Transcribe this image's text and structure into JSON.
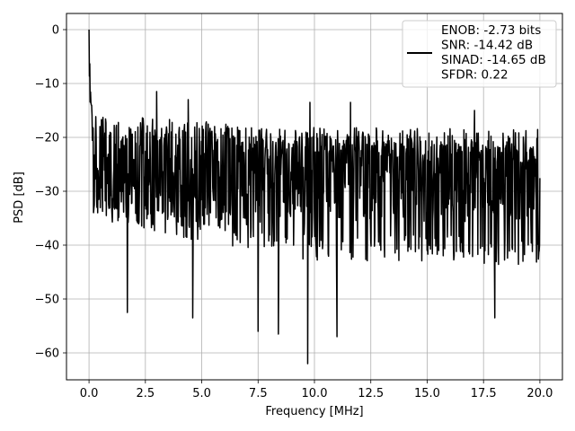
{
  "chart_data": {
    "type": "line",
    "xlabel": "Frequency [MHz]",
    "ylabel": "PSD [dB]",
    "xlim": [
      -1,
      21
    ],
    "ylim": [
      -65,
      3
    ],
    "xticks": [
      "0.0",
      "2.5",
      "5.0",
      "7.5",
      "10.0",
      "12.5",
      "15.0",
      "17.5",
      "20.0"
    ],
    "yticks": [
      "0",
      "−10",
      "−20",
      "−30",
      "−40",
      "−50",
      "−60"
    ],
    "grid": true,
    "legend_position": "top-right",
    "legend": [
      "ENOB: -2.73 bits",
      "SNR: -14.42 dB",
      "SINAD: -14.65 dB",
      "SFDR: 0.22"
    ],
    "series_color": "#000000",
    "series": [
      {
        "x_start": 0.0,
        "x_end": 20.0,
        "n_points": 1200,
        "peak": {
          "x": 0.0,
          "y": 0.0
        },
        "initial_decay": [
          [
            0.0,
            0.0
          ],
          [
            0.02,
            -3
          ],
          [
            0.05,
            -8
          ],
          [
            0.1,
            -12
          ],
          [
            0.2,
            -16
          ]
        ],
        "noise_floor_mean": -27,
        "upper_envelope": [
          [
            0.3,
            -15
          ],
          [
            2.0,
            -16
          ],
          [
            5.0,
            -17
          ],
          [
            10.0,
            -19
          ],
          [
            15.0,
            -20
          ],
          [
            20.0,
            -21
          ]
        ],
        "lower_envelope": [
          [
            0.3,
            -35
          ],
          [
            5.0,
            -40
          ],
          [
            10.0,
            -43
          ],
          [
            15.0,
            -43
          ],
          [
            20.0,
            -44
          ]
        ],
        "upper_spikes": [
          [
            3.0,
            -11.5
          ],
          [
            4.4,
            -13
          ],
          [
            9.8,
            -13.5
          ],
          [
            11.6,
            -13.5
          ],
          [
            17.1,
            -15
          ]
        ],
        "lower_spikes": [
          [
            1.7,
            -52.5
          ],
          [
            4.6,
            -53.5
          ],
          [
            7.5,
            -56
          ],
          [
            8.4,
            -56.5
          ],
          [
            9.7,
            -62
          ],
          [
            11.0,
            -57
          ],
          [
            18.0,
            -53.5
          ]
        ]
      }
    ]
  }
}
